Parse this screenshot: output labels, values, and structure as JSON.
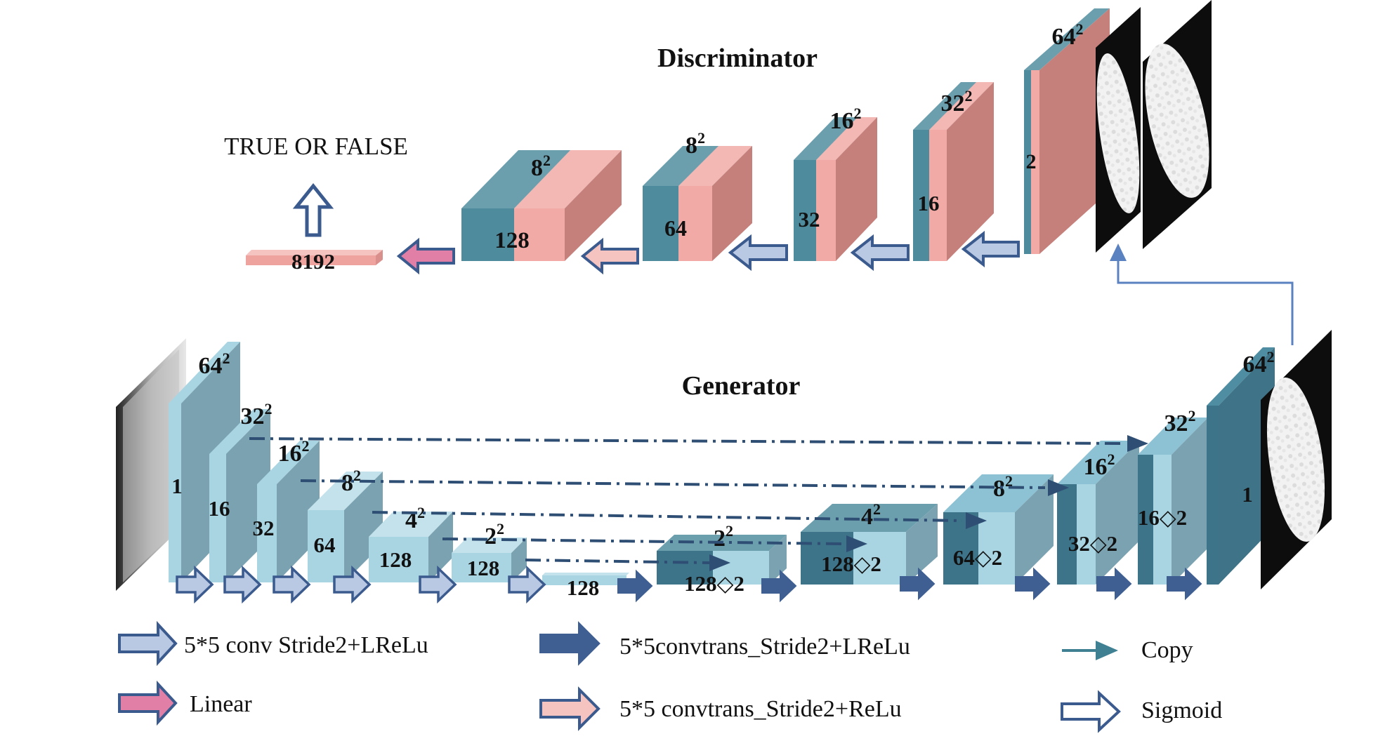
{
  "titles": {
    "discriminator": "Discriminator",
    "generator": "Generator",
    "output": "TRUE OR FALSE"
  },
  "discriminator": {
    "blocks": [
      {
        "size": "64",
        "channels": "2"
      },
      {
        "size": "32",
        "channels": "16"
      },
      {
        "size": "16",
        "channels": "32"
      },
      {
        "size": "8",
        "channels": "64"
      },
      {
        "size": "8",
        "channels": "128"
      }
    ],
    "flat": "8192"
  },
  "generator": {
    "encoder": [
      {
        "size": "64",
        "channels": "1"
      },
      {
        "size": "32",
        "channels": "16"
      },
      {
        "size": "16",
        "channels": "32"
      },
      {
        "size": "8",
        "channels": "64"
      },
      {
        "size": "4",
        "channels": "128"
      },
      {
        "size": "2",
        "channels": "128"
      }
    ],
    "bottleneck": "128",
    "decoder": [
      {
        "size": "2",
        "channels": "128◇2"
      },
      {
        "size": "4",
        "channels": "128◇2"
      },
      {
        "size": "8",
        "channels": "64◇2"
      },
      {
        "size": "16",
        "channels": "32◇2"
      },
      {
        "size": "32",
        "channels": "16◇2"
      },
      {
        "size": "64",
        "channels": "1"
      }
    ]
  },
  "legend": {
    "conv": "5*5 conv  Stride2+LReLu",
    "convtrans_lrelu": "5*5convtrans_Stride2+LReLu",
    "copy": "Copy",
    "linear": "Linear",
    "convtrans_relu": "5*5 convtrans_Stride2+ReLu",
    "sigmoid": "Sigmoid"
  },
  "colors": {
    "disc_teal": "#4e8b9c",
    "disc_pink": "#f1aaa6",
    "gen_light": "#a9d5e3",
    "gen_dark": "#3d7489",
    "conv_arrow": "#b9c8e3",
    "convtrans_arrow": "#3f5f93",
    "linear_arrow": "#e27fa6",
    "relu_arrow": "#f6c4c0"
  }
}
